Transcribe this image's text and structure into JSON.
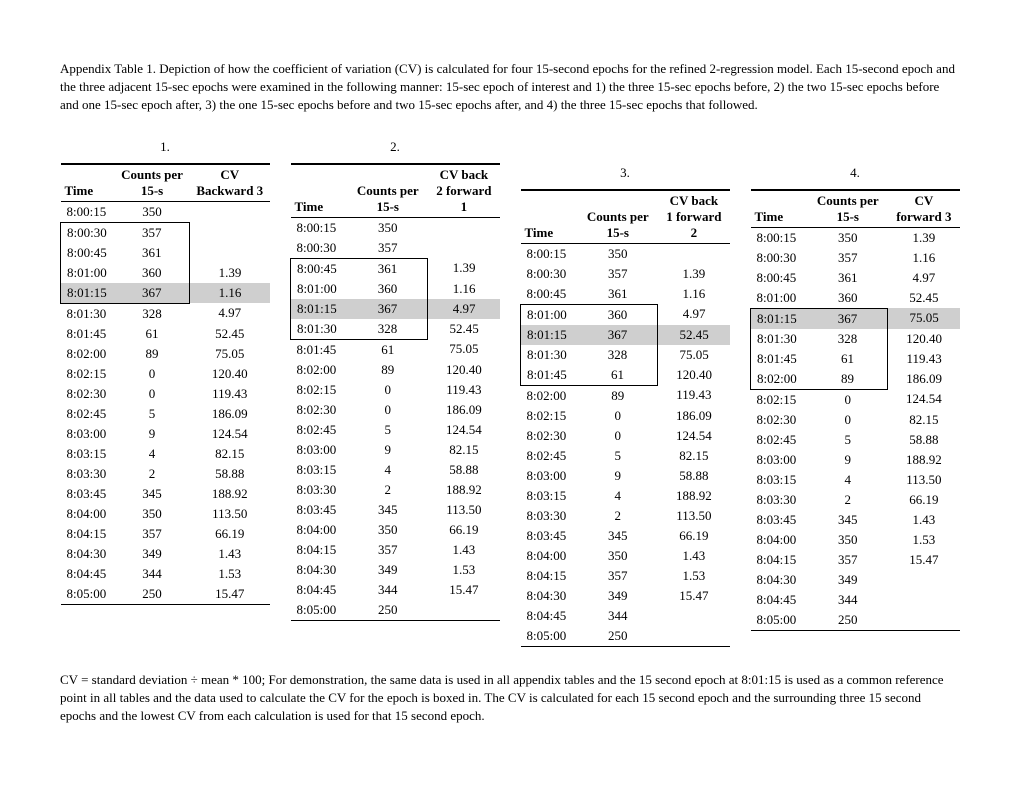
{
  "caption": "Appendix Table 1. Depiction of how the coefficient of variation (CV) is calculated for four 15-second epochs for the refined 2-regression model. Each 15-second epoch and the three adjacent 15-sec epochs were examined in the following manner: 15-sec epoch of interest and 1) the three 15-sec epochs before, 2) the two 15-sec epochs before and one 15-sec epoch after, 3) the one 15-sec epochs before and two 15-sec epochs after, and 4) the three 15-sec epochs that followed.",
  "footnote": "CV = standard deviation ÷ mean * 100; For demonstration, the same data is used in all appendix tables and the 15 second epoch at 8:01:15 is used as a common reference point in all tables and the data used to calculate the CV for the epoch is boxed in. The CV is calculated for each 15 second epoch and the surrounding three 15 second epochs and the lowest CV from each calculation is used for that 15 second epoch.",
  "cols": [
    "Time",
    "Counts per 15-s"
  ],
  "tables": [
    {
      "num": "1.",
      "cvhead": "CV Backward 3",
      "highlight": 4,
      "boxstart": 1,
      "boxend": 4,
      "rows": [
        [
          "8:00:15",
          "350",
          ""
        ],
        [
          "8:00:30",
          "357",
          ""
        ],
        [
          "8:00:45",
          "361",
          ""
        ],
        [
          "8:01:00",
          "360",
          "1.39"
        ],
        [
          "8:01:15",
          "367",
          "1.16"
        ],
        [
          "8:01:30",
          "328",
          "4.97"
        ],
        [
          "8:01:45",
          "61",
          "52.45"
        ],
        [
          "8:02:00",
          "89",
          "75.05"
        ],
        [
          "8:02:15",
          "0",
          "120.40"
        ],
        [
          "8:02:30",
          "0",
          "119.43"
        ],
        [
          "8:02:45",
          "5",
          "186.09"
        ],
        [
          "8:03:00",
          "9",
          "124.54"
        ],
        [
          "8:03:15",
          "4",
          "82.15"
        ],
        [
          "8:03:30",
          "2",
          "58.88"
        ],
        [
          "8:03:45",
          "345",
          "188.92"
        ],
        [
          "8:04:00",
          "350",
          "113.50"
        ],
        [
          "8:04:15",
          "357",
          "66.19"
        ],
        [
          "8:04:30",
          "349",
          "1.43"
        ],
        [
          "8:04:45",
          "344",
          "1.53"
        ],
        [
          "8:05:00",
          "250",
          "15.47"
        ]
      ]
    },
    {
      "num": "2.",
      "cvhead": "CV back 2 forward 1",
      "highlight": 4,
      "boxstart": 2,
      "boxend": 5,
      "rows": [
        [
          "8:00:15",
          "350",
          ""
        ],
        [
          "8:00:30",
          "357",
          ""
        ],
        [
          "8:00:45",
          "361",
          "1.39"
        ],
        [
          "8:01:00",
          "360",
          "1.16"
        ],
        [
          "8:01:15",
          "367",
          "4.97"
        ],
        [
          "8:01:30",
          "328",
          "52.45"
        ],
        [
          "8:01:45",
          "61",
          "75.05"
        ],
        [
          "8:02:00",
          "89",
          "120.40"
        ],
        [
          "8:02:15",
          "0",
          "119.43"
        ],
        [
          "8:02:30",
          "0",
          "186.09"
        ],
        [
          "8:02:45",
          "5",
          "124.54"
        ],
        [
          "8:03:00",
          "9",
          "82.15"
        ],
        [
          "8:03:15",
          "4",
          "58.88"
        ],
        [
          "8:03:30",
          "2",
          "188.92"
        ],
        [
          "8:03:45",
          "345",
          "113.50"
        ],
        [
          "8:04:00",
          "350",
          "66.19"
        ],
        [
          "8:04:15",
          "357",
          "1.43"
        ],
        [
          "8:04:30",
          "349",
          "1.53"
        ],
        [
          "8:04:45",
          "344",
          "15.47"
        ],
        [
          "8:05:00",
          "250",
          ""
        ]
      ]
    },
    {
      "num": "3.",
      "cvhead": "CV back 1 forward 2",
      "highlight": 4,
      "boxstart": 3,
      "boxend": 6,
      "rows": [
        [
          "8:00:15",
          "350",
          ""
        ],
        [
          "8:00:30",
          "357",
          "1.39"
        ],
        [
          "8:00:45",
          "361",
          "1.16"
        ],
        [
          "8:01:00",
          "360",
          "4.97"
        ],
        [
          "8:01:15",
          "367",
          "52.45"
        ],
        [
          "8:01:30",
          "328",
          "75.05"
        ],
        [
          "8:01:45",
          "61",
          "120.40"
        ],
        [
          "8:02:00",
          "89",
          "119.43"
        ],
        [
          "8:02:15",
          "0",
          "186.09"
        ],
        [
          "8:02:30",
          "0",
          "124.54"
        ],
        [
          "8:02:45",
          "5",
          "82.15"
        ],
        [
          "8:03:00",
          "9",
          "58.88"
        ],
        [
          "8:03:15",
          "4",
          "188.92"
        ],
        [
          "8:03:30",
          "2",
          "113.50"
        ],
        [
          "8:03:45",
          "345",
          "66.19"
        ],
        [
          "8:04:00",
          "350",
          "1.43"
        ],
        [
          "8:04:15",
          "357",
          "1.53"
        ],
        [
          "8:04:30",
          "349",
          "15.47"
        ],
        [
          "8:04:45",
          "344",
          ""
        ],
        [
          "8:05:00",
          "250",
          ""
        ]
      ]
    },
    {
      "num": "4.",
      "cvhead": "CV forward 3",
      "highlight": 4,
      "boxstart": 4,
      "boxend": 7,
      "rows": [
        [
          "8:00:15",
          "350",
          "1.39"
        ],
        [
          "8:00:30",
          "357",
          "1.16"
        ],
        [
          "8:00:45",
          "361",
          "4.97"
        ],
        [
          "8:01:00",
          "360",
          "52.45"
        ],
        [
          "8:01:15",
          "367",
          "75.05"
        ],
        [
          "8:01:30",
          "328",
          "120.40"
        ],
        [
          "8:01:45",
          "61",
          "119.43"
        ],
        [
          "8:02:00",
          "89",
          "186.09"
        ],
        [
          "8:02:15",
          "0",
          "124.54"
        ],
        [
          "8:02:30",
          "0",
          "82.15"
        ],
        [
          "8:02:45",
          "5",
          "58.88"
        ],
        [
          "8:03:00",
          "9",
          "188.92"
        ],
        [
          "8:03:15",
          "4",
          "113.50"
        ],
        [
          "8:03:30",
          "2",
          "66.19"
        ],
        [
          "8:03:45",
          "345",
          "1.43"
        ],
        [
          "8:04:00",
          "350",
          "1.53"
        ],
        [
          "8:04:15",
          "357",
          "15.47"
        ],
        [
          "8:04:30",
          "349",
          ""
        ],
        [
          "8:04:45",
          "344",
          ""
        ],
        [
          "8:05:00",
          "250",
          ""
        ]
      ]
    }
  ],
  "offsets": [
    0,
    0,
    26,
    26
  ]
}
